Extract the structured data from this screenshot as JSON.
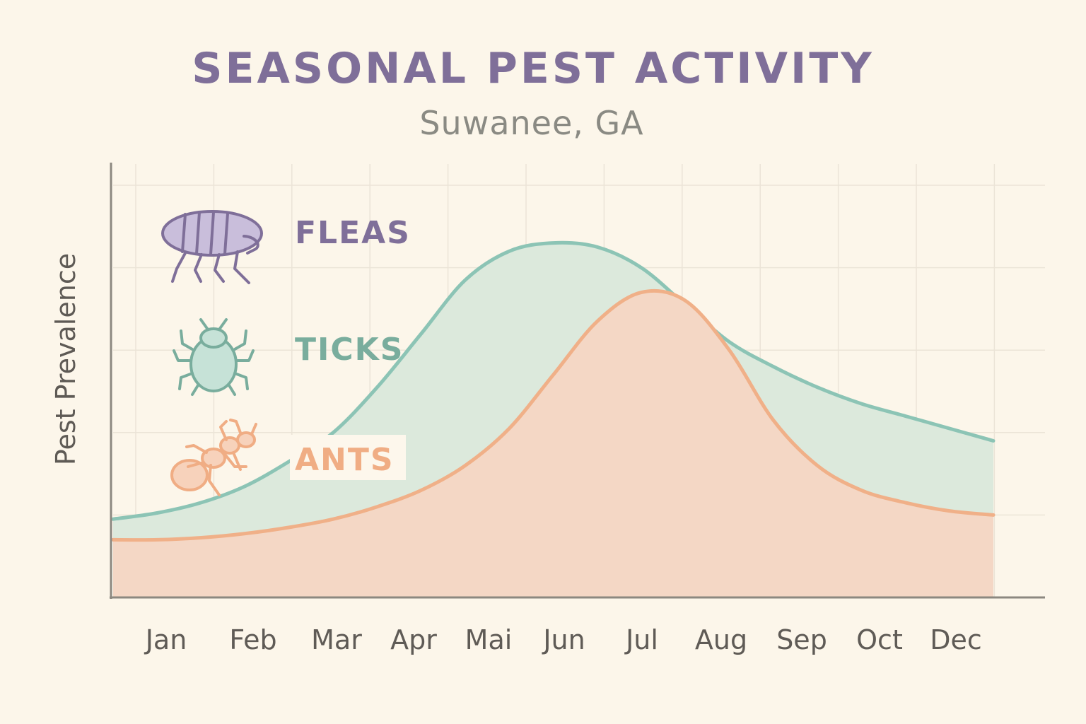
{
  "chart_data": {
    "type": "area",
    "title": "SEASONAL PEST ACTIVITY",
    "subtitle": "Suwanee, GA",
    "ylabel": "Pest Prevalence",
    "xlabel": "",
    "ylim": [
      0,
      100
    ],
    "grid": true,
    "legend_position": "top-left",
    "categories": [
      "Jan",
      "Feb",
      "Mar",
      "Apr",
      "Mai",
      "Jun",
      "Jul",
      "Aug",
      "Sep",
      "Oct",
      "Dec"
    ],
    "series": [
      {
        "name": "TICKS",
        "color": "#8cc4b5",
        "fill": "#dce9dc",
        "icon": "tick-icon",
        "x": [
          0.0,
          0.5,
          1.0,
          1.5,
          2.0,
          2.5,
          3.0,
          3.5,
          4.0,
          4.5,
          5.0,
          5.5,
          6.0,
          6.5,
          7.0,
          7.5,
          8.0,
          8.5,
          9.0,
          9.5,
          10.0
        ],
        "values": [
          19,
          20.5,
          23,
          27,
          33,
          40,
          51,
          64,
          77,
          84,
          86,
          85,
          80,
          71,
          62,
          56,
          51,
          47,
          44,
          41,
          38
        ]
      },
      {
        "name": "ANTS",
        "color": "#f0b088",
        "fill": "#f4d7c5",
        "icon": "ant-icon",
        "x": [
          0.0,
          0.5,
          1.0,
          1.5,
          2.0,
          2.5,
          3.0,
          3.5,
          4.0,
          4.5,
          5.0,
          5.5,
          6.0,
          6.5,
          7.0,
          7.5,
          8.0,
          8.5,
          9.0,
          9.5,
          10.0
        ],
        "values": [
          14,
          14,
          14.5,
          15.5,
          17,
          19,
          22,
          26,
          32,
          41,
          54,
          67,
          74,
          72,
          60,
          43,
          32,
          26,
          23,
          21,
          20
        ]
      }
    ],
    "legend": [
      {
        "label": "FLEAS",
        "color": "#7f6f99",
        "icon": "flea-icon"
      },
      {
        "label": "TICKS",
        "color": "#79ad9d",
        "icon": "tick-icon"
      },
      {
        "label": "ANTS",
        "color": "#f0ad84",
        "icon": "ant-icon"
      }
    ]
  }
}
